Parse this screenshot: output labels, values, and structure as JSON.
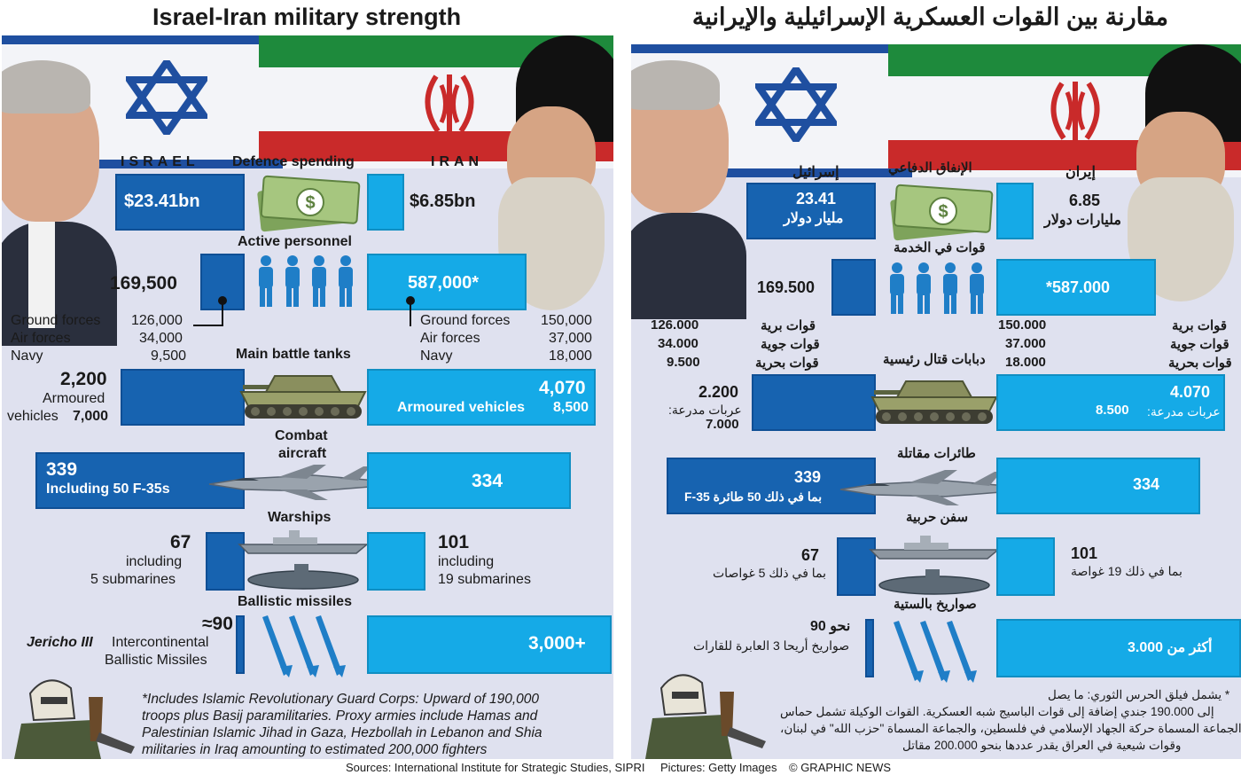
{
  "titles": {
    "en": "Israel-Iran military strength",
    "ar": "مقارنة بين القوات العسكرية الإسرائيلية والإيرانية"
  },
  "colors": {
    "israel_bar": "#1763b0",
    "iran_bar": "#15aae7",
    "panel_bg": "#dfe1ef"
  },
  "en": {
    "israel": "ISRAEL",
    "iran": "IRAN",
    "defence_spending": {
      "label": "Defence spending",
      "israel": "$23.41bn",
      "iran": "$6.85bn"
    },
    "active_personnel": {
      "label": "Active personnel",
      "israel": "169,500",
      "iran": "587,000*",
      "rows": [
        {
          "label": "Ground forces",
          "israel": "126,000",
          "iran": "150,000"
        },
        {
          "label": "Air forces",
          "israel": "34,000",
          "iran": "37,000"
        },
        {
          "label": "Navy",
          "israel": "9,500",
          "iran": "18,000"
        }
      ]
    },
    "tanks": {
      "label": "Main battle tanks",
      "israel": "2,200",
      "israel_armoured_label": "Armoured",
      "israel_armoured_label2": "vehicles",
      "israel_armoured": "7,000",
      "iran": "4,070",
      "iran_armoured_label": "Armoured vehicles",
      "iran_armoured": "8,500"
    },
    "aircraft": {
      "label1": "Combat",
      "label2": "aircraft",
      "israel": "339",
      "israel_note": "Including 50 F-35s",
      "iran": "334"
    },
    "warships": {
      "label": "Warships",
      "israel": "67",
      "israel_note1": "including",
      "israel_note2": "5 submarines",
      "iran": "101",
      "iran_note1": "including",
      "iran_note2": "19 submarines"
    },
    "missiles": {
      "label": "Ballistic missiles",
      "israel": "≈90",
      "israel_note_italic": "Jericho III",
      "israel_note1": "Intercontinental",
      "israel_note2": "Ballistic Missiles",
      "iran": "3,000+"
    },
    "footnote": [
      "*Includes Islamic Revolutionary Guard Corps: Upward of 190,000",
      "troops plus Basij paramilitaries. Proxy armies include Hamas and",
      "Palestinian Islamic Jihad in Gaza, Hezbollah in Lebanon and Shia",
      "militaries in Iraq amounting to estimated 200,000 fighters"
    ]
  },
  "ar": {
    "israel": "إسرائيل",
    "iran": "إيران",
    "defence_spending": {
      "label": "الإنفاق الدفاعي",
      "israel1": "23.41",
      "israel2": "مليار دولار",
      "iran1": "6.85",
      "iran2": "مليارات دولار"
    },
    "active_personnel": {
      "label": "قوات في الخدمة",
      "israel": "169.500",
      "iran": "*587.000",
      "rows": [
        {
          "label": "قوات برية",
          "israel": "126.000",
          "iran": "150.000"
        },
        {
          "label": "قوات جوية",
          "israel": "34.000",
          "iran": "37.000"
        },
        {
          "label": "قوات بحرية",
          "israel": "9.500",
          "iran": "18.000"
        }
      ]
    },
    "tanks": {
      "label": "دبابات قتال رئيسية",
      "israel": "2.200",
      "israel_armoured_label": "عربات مدرعة:",
      "israel_armoured": "7.000",
      "iran": "4.070",
      "iran_armoured_label": "عربات مدرعة:",
      "iran_armoured": "8.500"
    },
    "aircraft": {
      "label": "طائرات مقاتلة",
      "israel": "339",
      "israel_note": "بما في ذلك 50 طائرة F-35",
      "iran": "334"
    },
    "warships": {
      "label": "سفن حربية",
      "israel": "67",
      "israel_note": "بما في ذلك 5 غواصات",
      "iran": "101",
      "iran_note": "بما في ذلك 19 غواصة"
    },
    "missiles": {
      "label": "صواريخ بالستية",
      "israel": "نحو 90",
      "israel_note": "صواريخ أريحا 3 العابرة للقارات",
      "iran": "أكثر من 3.000"
    },
    "footnote": [
      "* يشمل فيلق الحرس الثوري: ما يصل",
      "إلى 190.000 جندي إضافة إلى قوات الباسيج شبه العسكرية. القوات الوكيلة تشمل حماس",
      "والجماعة المسماة حركة الجهاد الإسلامي في فلسطين، والجماعة المسماة \"حزب الله\" في لبنان،",
      "وقوات شيعية في العراق يقدر عددها بنحو 200.000 مقاتل"
    ]
  },
  "sources": {
    "sources": "Sources: International Institute for Strategic Studies, SIPRI",
    "pictures": "Pictures: Getty Images",
    "credit": "© GRAPHIC NEWS"
  },
  "chart_data": [
    {
      "type": "bar",
      "title": "Israel-Iran military strength",
      "categories": [
        "Defence spending ($bn)",
        "Active personnel",
        "Main battle tanks",
        "Armoured vehicles",
        "Combat aircraft",
        "Warships",
        "Ballistic missiles"
      ],
      "series": [
        {
          "name": "ISRAEL",
          "values": [
            23.41,
            169500,
            2200,
            7000,
            339,
            67,
            90
          ]
        },
        {
          "name": "IRAN",
          "values": [
            6.85,
            587000,
            4070,
            8500,
            334,
            101,
            3000
          ]
        }
      ],
      "sub_breakdown": {
        "categories": [
          "Ground forces",
          "Air forces",
          "Navy"
        ],
        "series": [
          {
            "name": "ISRAEL",
            "values": [
              126000,
              34000,
              9500
            ]
          },
          {
            "name": "IRAN",
            "values": [
              150000,
              37000,
              18000
            ]
          }
        ]
      }
    }
  ]
}
